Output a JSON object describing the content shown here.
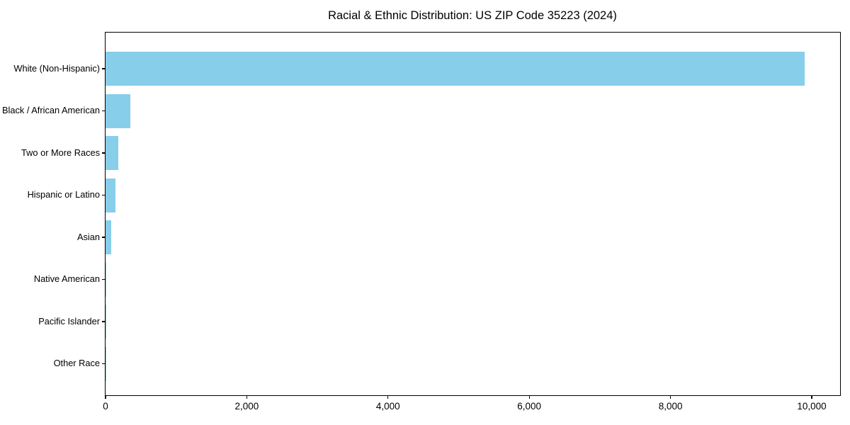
{
  "figure": {
    "title": "Racial & Ethnic Distribution: US ZIP Code 35223 (2024)"
  },
  "chart_data": {
    "type": "bar",
    "orientation": "horizontal",
    "title": "Racial & Ethnic Distribution: US ZIP Code 35223 (2024)",
    "categories": [
      "White (Non-Hispanic)",
      "Black / African American",
      "Two or More Races",
      "Hispanic or Latino",
      "Asian",
      "Native American",
      "Pacific Islander",
      "Other Race"
    ],
    "values": [
      9900,
      350,
      180,
      145,
      80,
      12,
      3,
      5
    ],
    "xlabel": "",
    "ylabel": "",
    "xlim": [
      0,
      10400
    ],
    "xticks": [
      0,
      2000,
      4000,
      6000,
      8000,
      10000
    ],
    "xtick_labels": [
      "0",
      "2,000",
      "4,000",
      "6,000",
      "8,000",
      "10,000"
    ],
    "bar_color": "#87CEEB",
    "frame_color": "#000000",
    "grid": false,
    "legend": null
  }
}
